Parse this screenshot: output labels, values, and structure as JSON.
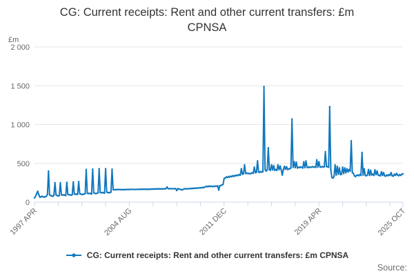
{
  "header": {
    "title_lines": [
      "CG: Current receipts: Rent and other current transfers: £m",
      "CPNSA"
    ]
  },
  "legend": {
    "label": "CG: Current receipts: Rent and other current transfers: £m CPNSA"
  },
  "footer": {
    "source_label": "Source:"
  },
  "colors": {
    "series": "#1178be",
    "grid": "#e6e6e6",
    "axis": "#ccd6eb",
    "tick_label": "#666666",
    "title_text": "#333333",
    "background": "#ffffff"
  },
  "chart_data": {
    "type": "line",
    "title": "CG: Current receipts: Rent and other current transfers: £m CPNSA",
    "ylabel": "£m",
    "xlabel": "",
    "ylim": [
      0,
      2000
    ],
    "grid": "horizontal",
    "legend_position": "bottom",
    "y_ticks": [
      {
        "value": 2000,
        "label": "2 000"
      },
      {
        "value": 1500,
        "label": "1 500"
      },
      {
        "value": 1000,
        "label": "1 000"
      },
      {
        "value": 500,
        "label": "500"
      },
      {
        "value": 0,
        "label": "0"
      }
    ],
    "x_unit": "month",
    "x_start": "1997 APR",
    "x_end": "2025 OCT",
    "minor_tick_interval": 22,
    "x_labeled_ticks": [
      {
        "index": 0,
        "label": "1997 APR"
      },
      {
        "index": 88,
        "label": "2004 AUG"
      },
      {
        "index": 176,
        "label": "2011 DEC"
      },
      {
        "index": 264,
        "label": "2019 APR"
      },
      {
        "index": 342,
        "label": "2025 OCT"
      }
    ],
    "series": [
      {
        "name": "CG: Current receipts: Rent and other current transfers: £m CPNSA",
        "color": "#1178be",
        "values": [
          55,
          75,
          110,
          140,
          95,
          65,
          70,
          75,
          70,
          65,
          70,
          75,
          100,
          400,
          95,
          85,
          80,
          75,
          90,
          250,
          95,
          85,
          80,
          85,
          250,
          95,
          90,
          95,
          90,
          85,
          255,
          100,
          95,
          95,
          90,
          95,
          260,
          105,
          100,
          105,
          100,
          265,
          110,
          105,
          100,
          100,
          105,
          110,
          420,
          115,
          110,
          115,
          110,
          105,
          425,
          120,
          115,
          110,
          115,
          120,
          430,
          125,
          120,
          125,
          120,
          115,
          430,
          130,
          125,
          120,
          125,
          130,
          425,
          160,
          160,
          162,
          160,
          163,
          162,
          164,
          163,
          160,
          162,
          161,
          163,
          162,
          164,
          162,
          165,
          163,
          166,
          164,
          165,
          163,
          165,
          164,
          166,
          165,
          167,
          165,
          168,
          166,
          168,
          166,
          167,
          165,
          168,
          166,
          169,
          167,
          170,
          168,
          171,
          169,
          172,
          170,
          171,
          169,
          172,
          170,
          173,
          171,
          174,
          195,
          175,
          172,
          175,
          173,
          174,
          172,
          175,
          173,
          150,
          174,
          170,
          166,
          162,
          158,
          165,
          170,
          174,
          170,
          174,
          172,
          176,
          174,
          178,
          176,
          180,
          178,
          182,
          180,
          184,
          182,
          186,
          184,
          190,
          188,
          194,
          200,
          205,
          198,
          208,
          202,
          206,
          200,
          205,
          202,
          208,
          204,
          210,
          155,
          212,
          215,
          222,
          228,
          305,
          310,
          325,
          318,
          330,
          322,
          335,
          328,
          340,
          332,
          345,
          338,
          350,
          342,
          355,
          348,
          430,
          360,
          365,
          480,
          370,
          375,
          368,
          372,
          365,
          370,
          378,
          372,
          450,
          380,
          385,
          530,
          390,
          382,
          395,
          388,
          392,
          1490,
          420,
          400,
          415,
          700,
          420,
          410,
          480,
          415,
          470,
          410,
          420,
          410,
          480,
          420,
          465,
          415,
          350,
          420,
          460,
          425,
          455,
          420,
          430,
          430,
          440,
          1070,
          450,
          520,
          445,
          515,
          440,
          450,
          445,
          455,
          448,
          440,
          520,
          445,
          530,
          450,
          445,
          455,
          448,
          452,
          458,
          450,
          455,
          448,
          545,
          452,
          520,
          455,
          450,
          460,
          452,
          456,
          650,
          460,
          455,
          450,
          1230,
          420,
          320,
          310,
          330,
          480,
          350,
          460,
          360,
          440,
          355,
          360,
          450,
          370,
          440,
          380,
          430,
          390,
          420,
          400,
          790,
          380,
          370,
          340,
          330,
          345,
          350,
          340,
          355,
          345,
          640,
          350,
          430,
          345,
          340,
          350,
          420,
          345,
          410,
          350,
          360,
          345,
          415,
          355,
          400,
          350,
          345,
          340,
          390,
          345,
          380,
          340,
          335,
          350,
          340,
          355,
          345,
          380,
          340,
          335,
          360,
          345,
          370,
          350,
          340,
          355,
          345,
          360,
          365
        ]
      }
    ]
  }
}
